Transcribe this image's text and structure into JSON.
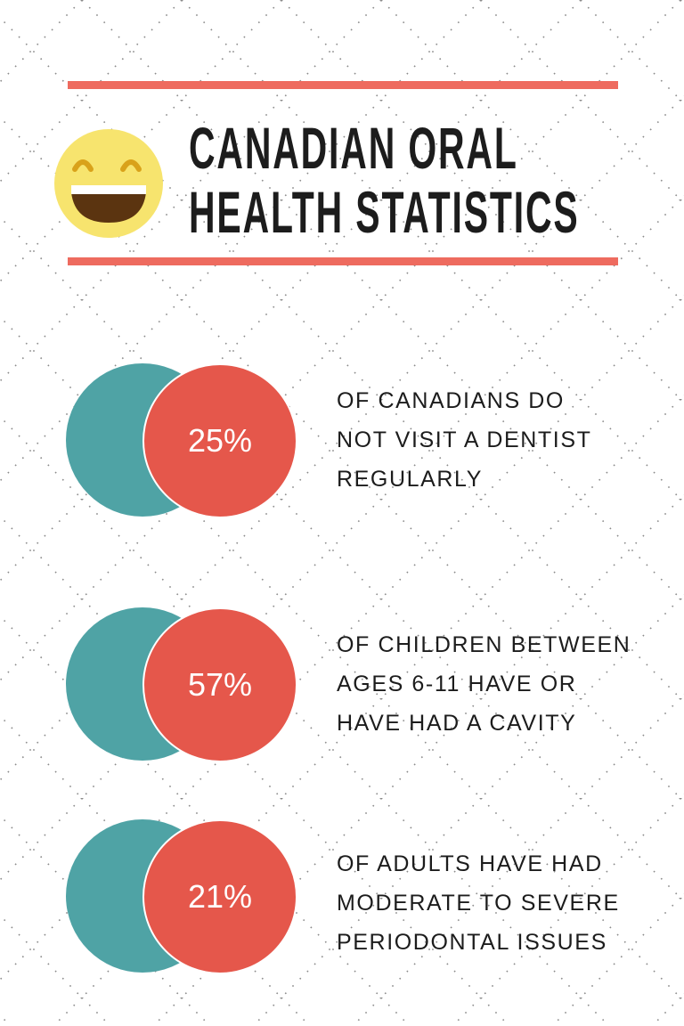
{
  "header": {
    "title_line1": "CANADIAN ORAL",
    "title_line2": "HEALTH STATISTICS",
    "icon": "grinning-face-icon"
  },
  "colors": {
    "accent_red": "#e5574b",
    "rule_red": "#ee6b5f",
    "teal": "#4fa3a5",
    "smiley_yellow": "#f7e46e",
    "text": "#1c1c1c"
  },
  "stats": [
    {
      "value": "25%",
      "lines": [
        "OF CANADIANS DO",
        "NOT VISIT A DENTIST",
        "REGULARLY"
      ]
    },
    {
      "value": "57%",
      "lines": [
        "OF CHILDREN BETWEEN",
        "AGES 6-11 HAVE OR",
        "HAVE HAD A CAVITY"
      ]
    },
    {
      "value": "21%",
      "lines": [
        "OF ADULTS HAVE HAD",
        "MODERATE TO SEVERE",
        "PERIODONTAL ISSUES"
      ]
    }
  ]
}
